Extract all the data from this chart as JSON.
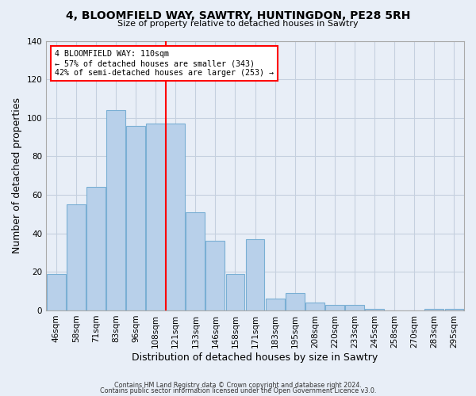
{
  "title": "4, BLOOMFIELD WAY, SAWTRY, HUNTINGDON, PE28 5RH",
  "subtitle": "Size of property relative to detached houses in Sawtry",
  "xlabel": "Distribution of detached houses by size in Sawtry",
  "ylabel": "Number of detached properties",
  "bar_labels": [
    "46sqm",
    "58sqm",
    "71sqm",
    "83sqm",
    "96sqm",
    "108sqm",
    "121sqm",
    "133sqm",
    "146sqm",
    "158sqm",
    "171sqm",
    "183sqm",
    "195sqm",
    "208sqm",
    "220sqm",
    "233sqm",
    "245sqm",
    "258sqm",
    "270sqm",
    "283sqm",
    "295sqm"
  ],
  "bar_values": [
    19,
    55,
    64,
    104,
    96,
    97,
    97,
    51,
    36,
    19,
    37,
    6,
    9,
    4,
    3,
    3,
    1,
    0,
    0,
    1,
    1
  ],
  "bar_color": "#b8d0ea",
  "bar_edge_color": "#7aafd4",
  "highlight_line_idx": 5.5,
  "highlight_line_color": "red",
  "annotation_text": "4 BLOOMFIELD WAY: 110sqm\n← 57% of detached houses are smaller (343)\n42% of semi-detached houses are larger (253) →",
  "annotation_box_color": "white",
  "annotation_box_edge_color": "red",
  "ylim": [
    0,
    140
  ],
  "yticks": [
    0,
    20,
    40,
    60,
    80,
    100,
    120,
    140
  ],
  "footer_line1": "Contains HM Land Registry data © Crown copyright and database right 2024.",
  "footer_line2": "Contains public sector information licensed under the Open Government Licence v3.0.",
  "background_color": "#e8eef7",
  "plot_background_color": "#e8eef7",
  "grid_color": "#c5d0df"
}
